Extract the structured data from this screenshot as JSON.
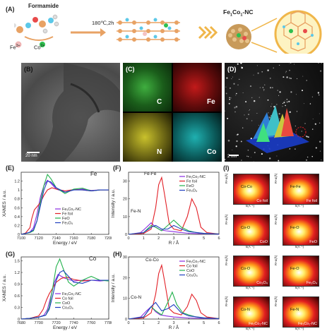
{
  "panels": {
    "A": {
      "letter": "(A)",
      "formamide": "Formamide",
      "fe_ion": "Fe",
      "fe_sup": "3+",
      "co_ion": "Co",
      "co_sup": "2+",
      "condition": "180℃,2h",
      "product_pre": "Fe",
      "product_sub1": "1",
      "product_mid": "Co",
      "product_sub2": "1",
      "product_post": "-NC"
    },
    "B": {
      "letter": "(B)",
      "scale": "20 nm"
    },
    "C": {
      "letter": "(C)",
      "maps": [
        "C",
        "Fe",
        "N",
        "Co"
      ]
    },
    "D": {
      "letter": "(D)",
      "scale": "2 nm"
    },
    "E": {
      "letter": "(E)",
      "element": "Fe"
    },
    "F": {
      "letter": "(F)",
      "annot_fefe": "Fe-Fe",
      "annot_fen": "Fe-N"
    },
    "G": {
      "letter": "(G)",
      "element": "Co"
    },
    "H": {
      "letter": "(H)",
      "annot_coco": "Co-Co",
      "annot_con": "Co-N"
    },
    "I": {
      "letter": "(I)",
      "tiles": [
        {
          "center": "Co-Co",
          "label": "Co foil"
        },
        {
          "center": "Fe-Fe",
          "label": "Fe foil"
        },
        {
          "center": "Co-O",
          "label": "CoO"
        },
        {
          "center": "Fe-O",
          "label": "FeO"
        },
        {
          "center": "Co-O",
          "label": "Co₃O₄"
        },
        {
          "center": "Fe-O",
          "label": "Fe₃O₄"
        },
        {
          "center": "Co-N",
          "label": "Fe₁Co₁-NC"
        },
        {
          "center": "Fe-N",
          "label": "Fe₁Co₁-NC"
        }
      ],
      "ylabel": "R+a(Å)",
      "xlabel": "k(Å⁻¹)"
    }
  },
  "colors": {
    "sample": "#8a2be2",
    "foil": "#e21f26",
    "monoxide": "#22b14c",
    "spinel": "#1f3fbf"
  },
  "chart_data": [
    {
      "panel": "E",
      "type": "line",
      "xlabel": "Energy / eV",
      "ylabel": "XANES / a.u.",
      "xlim": [
        7100,
        7200
      ],
      "ylim": [
        0,
        1.4
      ],
      "xticks": [
        7100,
        7120,
        7140,
        7160,
        7180,
        7200
      ],
      "yticks": [
        0.0,
        0.2,
        0.4,
        0.6,
        0.8,
        1.0,
        1.2
      ],
      "series": [
        {
          "name": "Fe₁Co₁-NC",
          "color": "#8a2be2",
          "x": [
            7100,
            7105,
            7110,
            7114,
            7118,
            7122,
            7126,
            7130,
            7134,
            7140,
            7150,
            7160,
            7170,
            7180,
            7190,
            7200
          ],
          "y": [
            0.0,
            0.02,
            0.05,
            0.15,
            0.45,
            0.85,
            1.1,
            1.22,
            1.15,
            1.02,
            0.95,
            1.0,
            1.02,
            0.99,
            1.0,
            1.0
          ]
        },
        {
          "name": "Fe foil",
          "color": "#e21f26",
          "x": [
            7100,
            7105,
            7110,
            7112,
            7115,
            7118,
            7122,
            7126,
            7130,
            7135,
            7140,
            7150,
            7160,
            7170,
            7180,
            7190,
            7200
          ],
          "y": [
            0.0,
            0.03,
            0.15,
            0.35,
            0.55,
            0.62,
            0.72,
            0.88,
            1.0,
            1.05,
            1.02,
            0.98,
            1.01,
            1.0,
            0.98,
            1.0,
            1.0
          ]
        },
        {
          "name": "FeO",
          "color": "#22b14c",
          "x": [
            7100,
            7105,
            7110,
            7114,
            7118,
            7122,
            7126,
            7130,
            7134,
            7140,
            7150,
            7160,
            7170,
            7180,
            7190,
            7200
          ],
          "y": [
            0.0,
            0.02,
            0.04,
            0.08,
            0.3,
            0.75,
            1.1,
            1.35,
            1.25,
            1.05,
            0.92,
            1.02,
            1.04,
            0.98,
            1.0,
            1.0
          ]
        },
        {
          "name": "Fe₃O₄",
          "color": "#1f3fbf",
          "x": [
            7100,
            7105,
            7110,
            7114,
            7118,
            7122,
            7126,
            7130,
            7134,
            7140,
            7150,
            7160,
            7170,
            7180,
            7190,
            7200
          ],
          "y": [
            0.0,
            0.02,
            0.05,
            0.1,
            0.3,
            0.65,
            1.0,
            1.2,
            1.18,
            1.05,
            0.95,
            1.0,
            1.0,
            0.98,
            1.0,
            1.0
          ]
        }
      ]
    },
    {
      "panel": "F",
      "type": "line",
      "xlabel": "R / Å",
      "ylabel": "Intensity / a.u.",
      "xlim": [
        0,
        6
      ],
      "ylim": [
        0,
        35
      ],
      "xticks": [
        0,
        1,
        2,
        3,
        4,
        5,
        6
      ],
      "yticks": [
        0,
        10,
        20,
        30
      ],
      "series": [
        {
          "name": "Fe₁Co₁-NC",
          "color": "#8a2be2",
          "x": [
            0,
            0.8,
            1.2,
            1.5,
            1.8,
            2.1,
            2.5,
            3.0,
            3.5,
            4.0,
            5.0,
            6.0
          ],
          "y": [
            0,
            1,
            4,
            6.5,
            4,
            2.5,
            2,
            1.5,
            1,
            0.6,
            0.3,
            0.1
          ]
        },
        {
          "name": "Fe foil",
          "color": "#e21f26",
          "x": [
            0,
            1.0,
            1.5,
            1.8,
            2.0,
            2.2,
            2.4,
            2.7,
            3.0,
            3.5,
            3.9,
            4.2,
            4.5,
            4.8,
            5.2,
            6.0
          ],
          "y": [
            0,
            0.5,
            3,
            15,
            28,
            32,
            22,
            6,
            3,
            2,
            10,
            20,
            15,
            4,
            1,
            0.2
          ]
        },
        {
          "name": "FeO",
          "color": "#22b14c",
          "x": [
            0,
            1.0,
            1.5,
            1.8,
            2.2,
            2.6,
            3.0,
            3.5,
            4.0,
            4.5,
            5.0,
            6.0
          ],
          "y": [
            0,
            1,
            5,
            4,
            2,
            5,
            8,
            4,
            2,
            1,
            0.5,
            0.2
          ]
        },
        {
          "name": "Fe₃O₄",
          "color": "#1f3fbf",
          "x": [
            0,
            1.0,
            1.5,
            1.8,
            2.2,
            2.6,
            3.0,
            3.5,
            4.0,
            5.0,
            6.0
          ],
          "y": [
            0,
            1,
            4,
            5,
            3,
            3,
            5,
            3,
            1.5,
            0.6,
            0.2
          ]
        }
      ]
    },
    {
      "panel": "G",
      "type": "line",
      "xlabel": "Energy / eV",
      "ylabel": "XANES / a.u.",
      "xlim": [
        7680,
        7780
      ],
      "ylim": [
        0,
        1.6
      ],
      "xticks": [
        7680,
        7700,
        7720,
        7740,
        7760,
        7780
      ],
      "yticks": [
        0.0,
        0.3,
        0.6,
        0.9,
        1.2,
        1.5
      ],
      "series": [
        {
          "name": "Fe₁Co₁-NC",
          "color": "#8a2be2",
          "x": [
            7680,
            7690,
            7700,
            7706,
            7710,
            7714,
            7718,
            7722,
            7726,
            7730,
            7740,
            7750,
            7760,
            7770,
            7780
          ],
          "y": [
            0.0,
            0.02,
            0.05,
            0.1,
            0.25,
            0.6,
            0.95,
            1.15,
            1.1,
            1.05,
            0.98,
            1.0,
            1.0,
            0.98,
            1.0
          ]
        },
        {
          "name": "Co foil",
          "color": "#e21f26",
          "x": [
            7680,
            7690,
            7700,
            7705,
            7709,
            7712,
            7716,
            7720,
            7726,
            7732,
            7740,
            7750,
            7760,
            7770,
            7780
          ],
          "y": [
            0.0,
            0.02,
            0.08,
            0.25,
            0.5,
            0.65,
            0.8,
            0.95,
            1.05,
            1.08,
            1.02,
            0.98,
            1.0,
            1.0,
            1.0
          ]
        },
        {
          "name": "CoO",
          "color": "#22b14c",
          "x": [
            7680,
            7690,
            7700,
            7708,
            7712,
            7716,
            7720,
            7724,
            7728,
            7734,
            7740,
            7750,
            7760,
            7770,
            7780
          ],
          "y": [
            0.0,
            0.02,
            0.05,
            0.1,
            0.3,
            0.8,
            1.35,
            1.55,
            1.3,
            0.95,
            0.85,
            1.0,
            1.1,
            1.0,
            0.98
          ]
        },
        {
          "name": "Co₃O₄",
          "color": "#1f3fbf",
          "x": [
            7680,
            7690,
            7700,
            7708,
            7712,
            7716,
            7720,
            7724,
            7728,
            7734,
            7740,
            7750,
            7760,
            7770,
            7780
          ],
          "y": [
            0.0,
            0.02,
            0.05,
            0.1,
            0.25,
            0.6,
            1.0,
            1.2,
            1.25,
            1.1,
            0.95,
            0.92,
            1.0,
            1.0,
            1.0
          ]
        }
      ]
    },
    {
      "panel": "H",
      "type": "line",
      "xlabel": "R / Å",
      "ylabel": "Intensity / a.u.",
      "xlim": [
        0,
        6
      ],
      "ylim": [
        0,
        30
      ],
      "xticks": [
        0,
        1,
        2,
        3,
        4,
        5,
        6
      ],
      "yticks": [
        0,
        10,
        20,
        30
      ],
      "series": [
        {
          "name": "Fe₁Co₁-NC",
          "color": "#8a2be2",
          "x": [
            0,
            0.8,
            1.2,
            1.5,
            1.8,
            2.1,
            2.5,
            3.0,
            3.5,
            4.0,
            5.0,
            6.0
          ],
          "y": [
            0,
            1,
            4,
            6,
            3.5,
            2,
            1.5,
            1,
            0.8,
            0.5,
            0.3,
            0.1
          ]
        },
        {
          "name": "Co foil",
          "color": "#e21f26",
          "x": [
            0,
            1.0,
            1.5,
            1.8,
            2.0,
            2.2,
            2.4,
            2.7,
            3.0,
            3.5,
            3.9,
            4.2,
            4.5,
            4.8,
            5.2,
            6.0
          ],
          "y": [
            0,
            0.5,
            3,
            12,
            22,
            26,
            18,
            5,
            3,
            2,
            6,
            12,
            9,
            3,
            1,
            0.2
          ]
        },
        {
          "name": "CoO",
          "color": "#22b14c",
          "x": [
            0,
            1.0,
            1.5,
            1.8,
            2.2,
            2.6,
            2.9,
            3.2,
            3.6,
            4.0,
            4.5,
            5.0,
            6.0
          ],
          "y": [
            0,
            1,
            6,
            4,
            2,
            8,
            13,
            7,
            3,
            2,
            1,
            0.5,
            0.2
          ]
        },
        {
          "name": "Co₃O₄",
          "color": "#1f3fbf",
          "x": [
            0,
            1.0,
            1.5,
            1.8,
            2.2,
            2.6,
            3.0,
            3.5,
            4.0,
            5.0,
            6.0
          ],
          "y": [
            0,
            1,
            6,
            8,
            4,
            5,
            7,
            3,
            1.5,
            0.6,
            0.2
          ]
        }
      ]
    }
  ]
}
